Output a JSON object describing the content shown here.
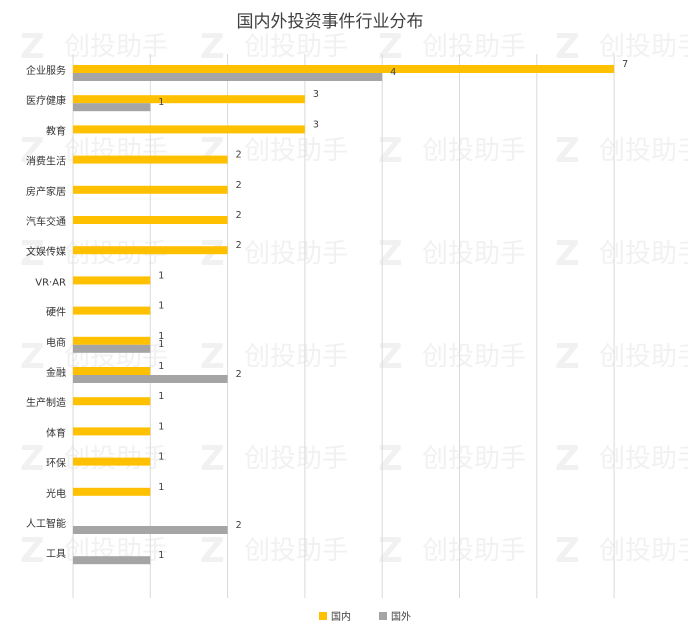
{
  "chart_data": {
    "type": "bar",
    "orientation": "horizontal",
    "title": "国内外投资事件行业分布",
    "categories": [
      "企业服务",
      "医疗健康",
      "教育",
      "消费生活",
      "房产家居",
      "汽车交通",
      "文娱传媒",
      "VR·AR",
      "硬件",
      "电商",
      "金融",
      "生产制造",
      "体育",
      "环保",
      "光电",
      "人工智能",
      "工具"
    ],
    "series": [
      {
        "name": "国内",
        "color": "#FFC000",
        "values": [
          7,
          3,
          3,
          2,
          2,
          2,
          2,
          1,
          1,
          1,
          1,
          1,
          1,
          1,
          1,
          null,
          null
        ]
      },
      {
        "name": "国外",
        "color": "#A5A5A5",
        "values": [
          4,
          1,
          null,
          null,
          null,
          null,
          null,
          null,
          null,
          1,
          2,
          null,
          null,
          null,
          null,
          2,
          1
        ]
      }
    ],
    "xlim": [
      0,
      8
    ],
    "xlabel": "",
    "ylabel": "",
    "grid": "vertical",
    "legend": "bottom"
  },
  "watermark": {
    "text": "创投助手",
    "logo_letter": "Z"
  }
}
